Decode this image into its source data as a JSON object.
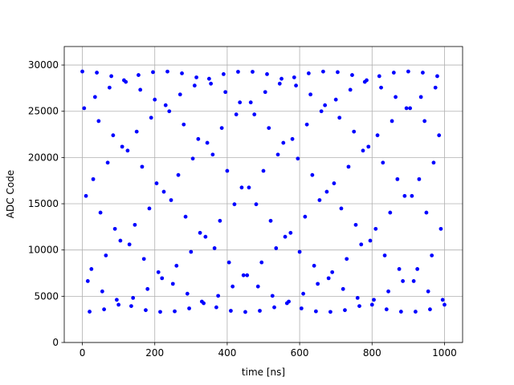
{
  "chart_data": {
    "type": "scatter",
    "x_label": "time [ns]",
    "y_label": "ADC Code",
    "xlim": [
      -50,
      1050
    ],
    "ylim": [
      0,
      32000
    ],
    "xticks": [
      0,
      200,
      400,
      600,
      800,
      1000
    ],
    "yticks": [
      0,
      5000,
      10000,
      15000,
      20000,
      25000,
      30000
    ],
    "grid": true,
    "color": "#0000ff",
    "x": [
      0,
      5,
      10,
      15,
      20,
      25,
      30,
      35,
      40,
      45,
      50,
      55,
      60,
      65,
      70,
      75,
      80,
      85,
      90,
      95,
      100,
      105,
      110,
      115,
      120,
      125,
      130,
      135,
      140,
      145,
      150,
      155,
      160,
      165,
      170,
      175,
      180,
      185,
      190,
      195,
      200,
      205,
      210,
      215,
      220,
      225,
      230,
      235,
      240,
      245,
      250,
      255,
      260,
      265,
      270,
      275,
      280,
      285,
      290,
      295,
      300,
      305,
      310,
      315,
      320,
      325,
      330,
      335,
      340,
      345,
      350,
      355,
      360,
      365,
      370,
      375,
      380,
      385,
      390,
      395,
      400,
      405,
      410,
      415,
      420,
      425,
      430,
      435,
      440,
      445,
      450,
      455,
      460,
      465,
      470,
      475,
      480,
      485,
      490,
      495,
      500,
      505,
      510,
      515,
      520,
      525,
      530,
      535,
      540,
      545,
      550,
      555,
      560,
      565,
      570,
      575,
      580,
      585,
      590,
      595,
      600,
      605,
      610,
      615,
      620,
      625,
      630,
      635,
      640,
      645,
      650,
      655,
      660,
      665,
      670,
      675,
      680,
      685,
      690,
      695,
      700,
      705,
      710,
      715,
      720,
      725,
      730,
      735,
      740,
      745,
      750,
      755,
      760,
      765,
      770,
      775,
      780,
      785,
      790,
      795,
      800,
      805,
      810,
      815,
      820,
      825,
      830,
      835,
      840,
      845,
      850,
      855,
      860,
      865,
      870,
      875,
      880,
      885,
      890,
      895,
      900,
      905,
      910,
      915,
      920,
      925,
      930,
      935,
      940,
      945,
      950,
      955,
      960,
      965,
      970,
      975,
      980,
      985,
      990,
      995,
      1000
    ],
    "values": [
      29300,
      25331,
      15846,
      6639,
      3332,
      7944,
      17659,
      26544,
      29174,
      23941,
      14043,
      5522,
      3584,
      9411,
      19445,
      27558,
      28796,
      22403,
      12283,
      4616,
      4084,
      11012,
      21170,
      28353,
      28176,
      20746,
      10601,
      3936,
      4822,
      12717,
      22800,
      28914,
      27325,
      19003,
      9031,
      3497,
      5783,
      14491,
      24304,
      29229,
      26259,
      17207,
      7601,
      3308,
      6949,
      16300,
      25651,
      29292,
      24999,
      15393,
      6341,
      3371,
      8296,
      18109,
      26817,
      29103,
      23569,
      13597,
      5275,
      3686,
      9800,
      19883,
      27778,
      28664,
      21999,
      11854,
      4424,
      4247,
      11430,
      21588,
      28516,
      27984,
      20317,
      10197,
      3804,
      5042,
      13155,
      23189,
      29016,
      27078,
      18557,
      8659,
      3426,
      6056,
      14941,
      24656,
      29268,
      25961,
      16754,
      7269,
      3300,
      7269,
      16754,
      25961,
      29268,
      24656,
      14941,
      6056,
      3426,
      8659,
      18557,
      27078,
      29016,
      23189,
      13155,
      5042,
      3804,
      10197,
      20317,
      27984,
      28516,
      21588,
      11430,
      4247,
      4424,
      11854,
      21999,
      28664,
      27778,
      19883,
      9800,
      3686,
      5275,
      13597,
      23569,
      29103,
      26817,
      18109,
      8296,
      3371,
      6341,
      15393,
      24999,
      29292,
      25651,
      16300,
      6949,
      3308,
      7601,
      17207,
      26259,
      29229,
      24304,
      14491,
      5783,
      3497,
      9031,
      19003,
      27325,
      28914,
      22800,
      12717,
      4822,
      3936,
      10601,
      20746,
      28176,
      28353,
      21170,
      11012,
      4084,
      4616,
      12283,
      22403,
      28796,
      27558,
      19445,
      9411,
      3584,
      5522,
      14043,
      23941,
      29174,
      26544,
      17659,
      7944,
      3332,
      6639,
      15846,
      25331,
      29300,
      25331,
      15846,
      6639,
      3332,
      7944,
      17659,
      26544,
      29174,
      23941,
      14043,
      5522,
      3584,
      9411,
      19445,
      27558,
      28796,
      22403,
      12283,
      4616,
      4084
    ]
  }
}
